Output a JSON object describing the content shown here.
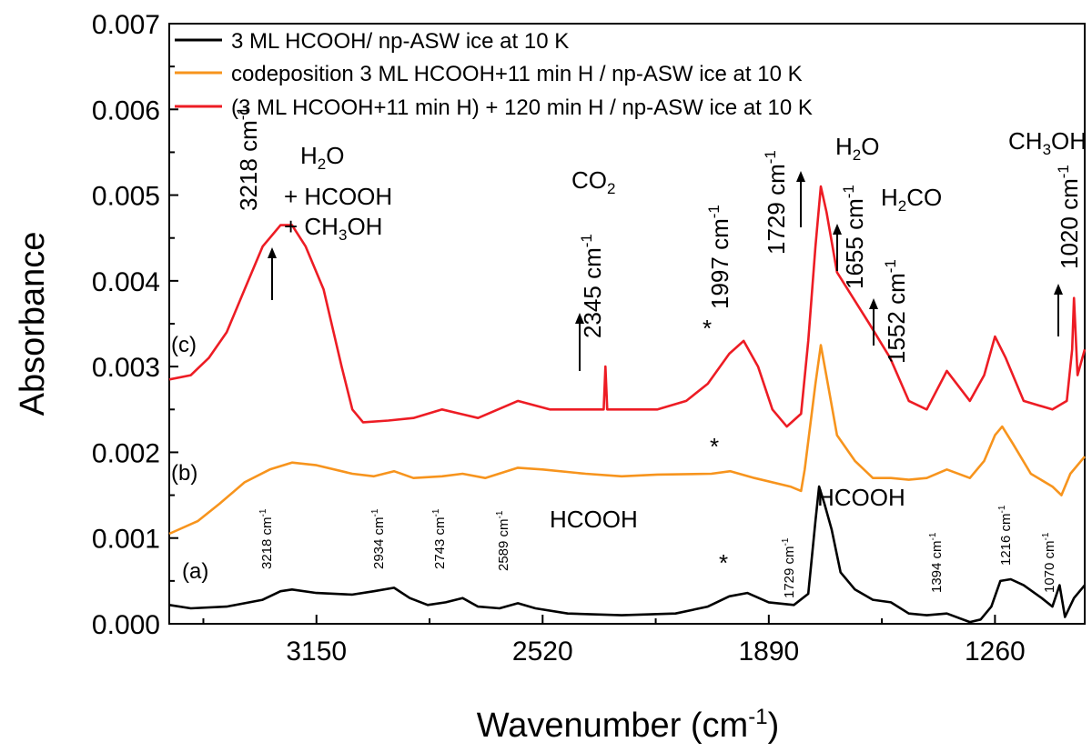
{
  "chart_data": {
    "type": "line",
    "xlabel": "Wavenumber (cm",
    "xlabel_sup": "-1",
    "xlabel_close": ")",
    "ylabel": "Absorbance",
    "xlim": [
      3560,
      1010
    ],
    "ylim": [
      0.0,
      0.007
    ],
    "xticks": [
      3150,
      2520,
      1890,
      1260
    ],
    "yticks": [
      "0.000",
      "0.001",
      "0.002",
      "0.003",
      "0.004",
      "0.005",
      "0.006",
      "0.007"
    ],
    "legend_position": "top-left",
    "series": [
      {
        "name": "3 ML HCOOH/ np-ASW ice at 10 K",
        "color": "#000000",
        "label": "(a)",
        "points": [
          [
            3560,
            0.00022
          ],
          [
            3500,
            0.00018
          ],
          [
            3400,
            0.0002
          ],
          [
            3300,
            0.00028
          ],
          [
            3250,
            0.00038
          ],
          [
            3218,
            0.0004
          ],
          [
            3150,
            0.00036
          ],
          [
            3050,
            0.00034
          ],
          [
            2990,
            0.00038
          ],
          [
            2934,
            0.00042
          ],
          [
            2890,
            0.0003
          ],
          [
            2840,
            0.00022
          ],
          [
            2790,
            0.00025
          ],
          [
            2743,
            0.0003
          ],
          [
            2700,
            0.0002
          ],
          [
            2640,
            0.00018
          ],
          [
            2589,
            0.00024
          ],
          [
            2540,
            0.00018
          ],
          [
            2450,
            0.00012
          ],
          [
            2300,
            0.0001
          ],
          [
            2150,
            0.00012
          ],
          [
            2060,
            0.0002
          ],
          [
            2000,
            0.00032
          ],
          [
            1950,
            0.00036
          ],
          [
            1890,
            0.00025
          ],
          [
            1820,
            0.00022
          ],
          [
            1780,
            0.00035
          ],
          [
            1760,
            0.0012
          ],
          [
            1750,
            0.0016
          ],
          [
            1735,
            0.0014
          ],
          [
            1715,
            0.0011
          ],
          [
            1690,
            0.0006
          ],
          [
            1650,
            0.0004
          ],
          [
            1600,
            0.00028
          ],
          [
            1550,
            0.00025
          ],
          [
            1500,
            0.00012
          ],
          [
            1450,
            0.0001
          ],
          [
            1394,
            0.00012
          ],
          [
            1330,
            2e-05
          ],
          [
            1300,
            5e-05
          ],
          [
            1270,
            0.0002
          ],
          [
            1245,
            0.0005
          ],
          [
            1216,
            0.00052
          ],
          [
            1180,
            0.00045
          ],
          [
            1130,
            0.0003
          ],
          [
            1100,
            0.0002
          ],
          [
            1080,
            0.00045
          ],
          [
            1065,
            8e-05
          ],
          [
            1040,
            0.0003
          ],
          [
            1010,
            0.00045
          ]
        ]
      },
      {
        "name": "codeposition  3 ML HCOOH+11 min H / np-ASW ice at 10 K",
        "color": "#f7941d",
        "label": "(b)",
        "points": [
          [
            3560,
            0.00105
          ],
          [
            3480,
            0.0012
          ],
          [
            3420,
            0.0014
          ],
          [
            3350,
            0.00165
          ],
          [
            3280,
            0.0018
          ],
          [
            3218,
            0.00188
          ],
          [
            3150,
            0.00185
          ],
          [
            3050,
            0.00175
          ],
          [
            2990,
            0.00172
          ],
          [
            2934,
            0.00178
          ],
          [
            2880,
            0.0017
          ],
          [
            2800,
            0.00172
          ],
          [
            2743,
            0.00175
          ],
          [
            2680,
            0.0017
          ],
          [
            2589,
            0.00182
          ],
          [
            2520,
            0.0018
          ],
          [
            2400,
            0.00175
          ],
          [
            2300,
            0.00172
          ],
          [
            2200,
            0.00174
          ],
          [
            2050,
            0.00175
          ],
          [
            1997,
            0.00178
          ],
          [
            1930,
            0.0017
          ],
          [
            1830,
            0.0016
          ],
          [
            1800,
            0.00155
          ],
          [
            1790,
            0.0018
          ],
          [
            1760,
            0.0028
          ],
          [
            1745,
            0.00325
          ],
          [
            1730,
            0.0029
          ],
          [
            1700,
            0.0022
          ],
          [
            1650,
            0.0019
          ],
          [
            1600,
            0.0017
          ],
          [
            1550,
            0.0017
          ],
          [
            1500,
            0.00168
          ],
          [
            1450,
            0.0017
          ],
          [
            1394,
            0.0018
          ],
          [
            1330,
            0.0017
          ],
          [
            1290,
            0.0019
          ],
          [
            1260,
            0.0022
          ],
          [
            1240,
            0.0023
          ],
          [
            1210,
            0.0021
          ],
          [
            1160,
            0.00175
          ],
          [
            1100,
            0.0016
          ],
          [
            1075,
            0.0015
          ],
          [
            1050,
            0.00175
          ],
          [
            1010,
            0.00195
          ]
        ]
      },
      {
        "name": "(3 ML HCOOH+11 min H) + 120 min H / np-ASW ice at 10 K",
        "color": "#ed1c24",
        "label": "(c)",
        "points": [
          [
            3560,
            0.00285
          ],
          [
            3500,
            0.0029
          ],
          [
            3450,
            0.0031
          ],
          [
            3400,
            0.0034
          ],
          [
            3350,
            0.0039
          ],
          [
            3300,
            0.0044
          ],
          [
            3250,
            0.00465
          ],
          [
            3218,
            0.00465
          ],
          [
            3180,
            0.0044
          ],
          [
            3130,
            0.0039
          ],
          [
            3080,
            0.003
          ],
          [
            3050,
            0.0025
          ],
          [
            3020,
            0.00235
          ],
          [
            2950,
            0.00237
          ],
          [
            2880,
            0.0024
          ],
          [
            2800,
            0.0025
          ],
          [
            2700,
            0.0024
          ],
          [
            2589,
            0.0026
          ],
          [
            2500,
            0.0025
          ],
          [
            2400,
            0.0025
          ],
          [
            2350,
            0.0025
          ],
          [
            2345,
            0.003
          ],
          [
            2340,
            0.0025
          ],
          [
            2200,
            0.0025
          ],
          [
            2120,
            0.0026
          ],
          [
            2060,
            0.0028
          ],
          [
            2000,
            0.00315
          ],
          [
            1960,
            0.0033
          ],
          [
            1920,
            0.003
          ],
          [
            1880,
            0.0025
          ],
          [
            1840,
            0.0023
          ],
          [
            1800,
            0.00245
          ],
          [
            1780,
            0.0033
          ],
          [
            1760,
            0.0044
          ],
          [
            1745,
            0.0051
          ],
          [
            1729,
            0.0048
          ],
          [
            1700,
            0.0041
          ],
          [
            1655,
            0.0038
          ],
          [
            1610,
            0.0035
          ],
          [
            1552,
            0.0031
          ],
          [
            1500,
            0.0026
          ],
          [
            1450,
            0.0025
          ],
          [
            1394,
            0.00295
          ],
          [
            1330,
            0.0026
          ],
          [
            1290,
            0.0029
          ],
          [
            1260,
            0.00335
          ],
          [
            1230,
            0.0031
          ],
          [
            1180,
            0.0026
          ],
          [
            1100,
            0.0025
          ],
          [
            1060,
            0.0026
          ],
          [
            1045,
            0.0032
          ],
          [
            1040,
            0.0038
          ],
          [
            1030,
            0.0029
          ],
          [
            1010,
            0.0032
          ]
        ]
      }
    ],
    "annotations": {
      "h2o_group": {
        "h2o": "H",
        "h2o_sub": "2",
        "h2o_tail": "O",
        "plus_hcooh": "+ HCOOH",
        "plus_ch3oh_a": "+ CH",
        "plus_ch3oh_sub": "3",
        "plus_ch3oh_b": "OH"
      },
      "peak_3218": {
        "text": "3218 cm",
        "sup": "-1"
      },
      "co2": {
        "text": "CO",
        "sub": "2"
      },
      "peak_2345": {
        "text": "2345 cm",
        "sup": "-1"
      },
      "peak_1997": {
        "text": "1997 cm",
        "sup": "-1"
      },
      "peak_1729": {
        "text": "1729 cm",
        "sup": "-1"
      },
      "h2o_right": {
        "a": "H",
        "sub": "2",
        "b": "O"
      },
      "peak_1655": {
        "text": "1655 cm",
        "sup": "-1"
      },
      "h2co": {
        "a": "H",
        "sub": "2",
        "b": "CO"
      },
      "peak_1552": {
        "text": "1552 cm",
        "sup": "-1"
      },
      "ch3oh": {
        "a": "CH",
        "sub": "3",
        "b": "OH"
      },
      "peak_1020": {
        "text": "1020 cm",
        "sup": "-1"
      },
      "hcooh_left": "HCOOH",
      "hcooh_right": "HCOOH",
      "star": "*",
      "small_peaks": [
        {
          "text": "3218 cm",
          "sup": "-1"
        },
        {
          "text": "2934 cm",
          "sup": "-1"
        },
        {
          "text": "2743 cm",
          "sup": "-1"
        },
        {
          "text": "2589 cm",
          "sup": "-1"
        },
        {
          "text": "1729 cm",
          "sup": "-1"
        },
        {
          "text": "1394 cm",
          "sup": "-1"
        },
        {
          "text": "1216 cm",
          "sup": "-1"
        },
        {
          "text": "1070 cm",
          "sup": "-1"
        }
      ]
    }
  }
}
